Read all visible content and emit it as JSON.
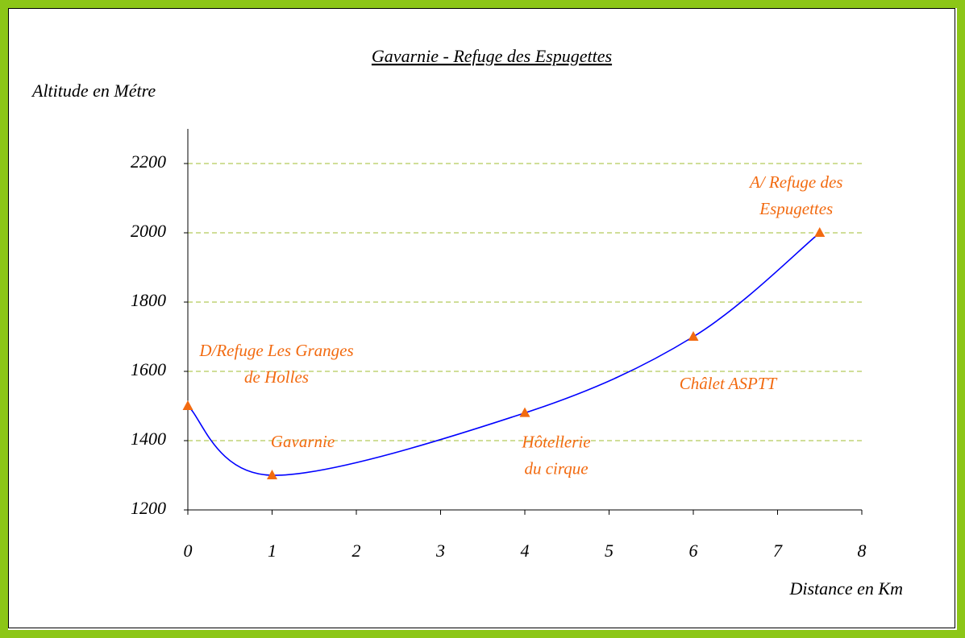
{
  "chart_data": {
    "type": "line",
    "title": "Gavarnie - Refuge des Espugettes",
    "y_label": "Altitude en Métre",
    "x_label": "Distance en Km",
    "x": [
      0,
      1,
      4,
      6,
      7.5
    ],
    "series": [
      {
        "name": "Altitude",
        "color": "#0000ff",
        "marker_color": "#f26a10",
        "values": [
          1500,
          1300,
          1480,
          1700,
          2000
        ]
      }
    ],
    "point_labels": [
      [
        "D/Refuge Les Granges",
        "de Holles"
      ],
      [
        "Gavarnie"
      ],
      [
        "Hôtellerie",
        "du cirque"
      ],
      [
        "Châlet ASPTT"
      ],
      [
        "A/ Refuge des",
        "Espugettes"
      ]
    ],
    "xlim": [
      0,
      8
    ],
    "xticks": [
      0,
      1,
      2,
      3,
      4,
      5,
      6,
      7,
      8
    ],
    "ylim": [
      1200,
      2300
    ],
    "yticks": [
      1200,
      1400,
      1600,
      1800,
      2000,
      2200
    ],
    "grid": true,
    "grid_color": "#b3c95a"
  }
}
